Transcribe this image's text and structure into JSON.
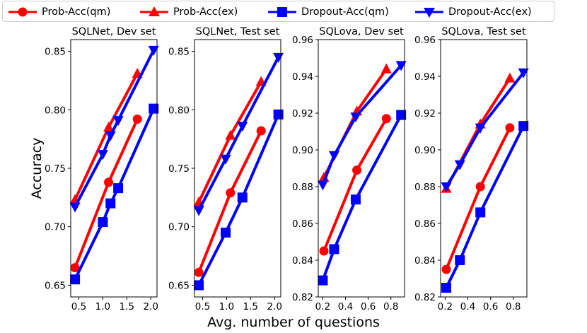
{
  "figure": {
    "shared_xlabel": "Avg. number of questions",
    "shared_ylabel": "Accuracy"
  },
  "legend": [
    {
      "label": "Prob-Acc(qm)",
      "color": "#ff0000",
      "marker": "circle"
    },
    {
      "label": "Prob-Acc(ex)",
      "color": "#ff0000",
      "marker": "triangle-up"
    },
    {
      "label": "Dropout-Acc(qm)",
      "color": "#0000ff",
      "marker": "square"
    },
    {
      "label": "Dropout-Acc(ex)",
      "color": "#0000ff",
      "marker": "triangle-down"
    }
  ],
  "chart_data": [
    {
      "type": "line",
      "title": "SQLNet, Dev set",
      "xlabel": "Avg. number of questions",
      "ylabel": "Accuracy",
      "xlim": [
        0.33,
        2.13
      ],
      "ylim": [
        0.64,
        0.86
      ],
      "xticks": [
        0.5,
        1.0,
        1.5,
        2.0
      ],
      "xtick_labels": [
        "0.5",
        "1.0",
        "1.5",
        "2.0"
      ],
      "yticks": [
        0.65,
        0.7,
        0.75,
        0.8,
        0.85
      ],
      "ytick_labels": [
        "0.65",
        "0.70",
        "0.75",
        "0.80",
        "0.85"
      ],
      "series": [
        {
          "name": "Prob-Acc(qm)",
          "color": "#ff0000",
          "marker": "circle",
          "x": [
            0.42,
            1.12,
            1.72
          ],
          "y": [
            0.665,
            0.738,
            0.792
          ]
        },
        {
          "name": "Prob-Acc(ex)",
          "color": "#ff0000",
          "marker": "triangle-up",
          "x": [
            0.42,
            1.12,
            1.72
          ],
          "y": [
            0.723,
            0.785,
            0.831
          ]
        },
        {
          "name": "Dropout-Acc(qm)",
          "color": "#0000ff",
          "marker": "square",
          "x": [
            0.42,
            1.0,
            1.16,
            1.32,
            2.06
          ],
          "y": [
            0.655,
            0.704,
            0.72,
            0.733,
            0.801
          ]
        },
        {
          "name": "Dropout-Acc(ex)",
          "color": "#0000ff",
          "marker": "triangle-down",
          "x": [
            0.42,
            1.0,
            1.16,
            1.32,
            2.06
          ],
          "y": [
            0.717,
            0.762,
            0.778,
            0.791,
            0.851
          ]
        }
      ]
    },
    {
      "type": "line",
      "title": "SQLNet, Test set",
      "xlabel": "Avg. number of questions",
      "ylabel": "Accuracy",
      "xlim": [
        0.33,
        2.13
      ],
      "ylim": [
        0.64,
        0.86
      ],
      "xticks": [
        0.5,
        1.0,
        1.5,
        2.0
      ],
      "xtick_labels": [
        "0.5",
        "1.0",
        "1.5",
        "2.0"
      ],
      "yticks": [
        0.65,
        0.7,
        0.75,
        0.8,
        0.85
      ],
      "ytick_labels": [
        "0.65",
        "0.70",
        "0.75",
        "0.80",
        "0.85"
      ],
      "series": [
        {
          "name": "Prob-Acc(qm)",
          "color": "#ff0000",
          "marker": "circle",
          "x": [
            0.42,
            1.08,
            1.72
          ],
          "y": [
            0.661,
            0.729,
            0.782
          ]
        },
        {
          "name": "Prob-Acc(ex)",
          "color": "#ff0000",
          "marker": "triangle-up",
          "x": [
            0.42,
            1.08,
            1.72
          ],
          "y": [
            0.721,
            0.778,
            0.824
          ]
        },
        {
          "name": "Dropout-Acc(qm)",
          "color": "#0000ff",
          "marker": "square",
          "x": [
            0.42,
            0.98,
            1.33,
            2.08
          ],
          "y": [
            0.65,
            0.695,
            0.725,
            0.796
          ]
        },
        {
          "name": "Dropout-Acc(ex)",
          "color": "#0000ff",
          "marker": "triangle-down",
          "x": [
            0.42,
            0.98,
            1.33,
            2.08
          ],
          "y": [
            0.714,
            0.758,
            0.786,
            0.845
          ]
        }
      ]
    },
    {
      "type": "line",
      "title": "SQLova, Dev set",
      "xlabel": "Avg. number of questions",
      "ylabel": "Accuracy",
      "xlim": [
        0.16,
        0.92
      ],
      "ylim": [
        0.82,
        0.96
      ],
      "xticks": [
        0.2,
        0.4,
        0.6,
        0.8
      ],
      "xtick_labels": [
        "0.2",
        "0.4",
        "0.6",
        "0.8"
      ],
      "yticks": [
        0.82,
        0.84,
        0.86,
        0.88,
        0.9,
        0.92,
        0.94,
        0.96
      ],
      "ytick_labels": [
        "0.82",
        "0.84",
        "0.86",
        "0.88",
        "0.90",
        "0.92",
        "0.94",
        "0.96"
      ],
      "series": [
        {
          "name": "Prob-Acc(qm)",
          "color": "#ff0000",
          "marker": "circle",
          "x": [
            0.21,
            0.5,
            0.76
          ],
          "y": [
            0.845,
            0.889,
            0.917
          ]
        },
        {
          "name": "Prob-Acc(ex)",
          "color": "#ff0000",
          "marker": "triangle-up",
          "x": [
            0.21,
            0.5,
            0.76
          ],
          "y": [
            0.885,
            0.921,
            0.944
          ]
        },
        {
          "name": "Dropout-Acc(qm)",
          "color": "#0000ff",
          "marker": "square",
          "x": [
            0.2,
            0.3,
            0.49,
            0.89
          ],
          "y": [
            0.829,
            0.846,
            0.873,
            0.919
          ]
        },
        {
          "name": "Dropout-Acc(ex)",
          "color": "#0000ff",
          "marker": "triangle-down",
          "x": [
            0.2,
            0.3,
            0.49,
            0.89
          ],
          "y": [
            0.881,
            0.897,
            0.918,
            0.946
          ]
        }
      ]
    },
    {
      "type": "line",
      "title": "SQLova, Test set",
      "xlabel": "Avg. number of questions",
      "ylabel": "Accuracy",
      "xlim": [
        0.16,
        0.92
      ],
      "ylim": [
        0.82,
        0.96
      ],
      "xticks": [
        0.2,
        0.4,
        0.6,
        0.8
      ],
      "xtick_labels": [
        "0.2",
        "0.4",
        "0.6",
        "0.8"
      ],
      "yticks": [
        0.82,
        0.84,
        0.86,
        0.88,
        0.9,
        0.92,
        0.94,
        0.96
      ],
      "ytick_labels": [
        "0.82",
        "0.84",
        "0.86",
        "0.88",
        "0.90",
        "0.92",
        "0.94",
        "0.96"
      ],
      "series": [
        {
          "name": "Prob-Acc(qm)",
          "color": "#ff0000",
          "marker": "circle",
          "x": [
            0.21,
            0.51,
            0.77
          ],
          "y": [
            0.835,
            0.88,
            0.912
          ]
        },
        {
          "name": "Prob-Acc(ex)",
          "color": "#ff0000",
          "marker": "triangle-up",
          "x": [
            0.21,
            0.51,
            0.77
          ],
          "y": [
            0.879,
            0.914,
            0.939
          ]
        },
        {
          "name": "Dropout-Acc(qm)",
          "color": "#0000ff",
          "marker": "square",
          "x": [
            0.21,
            0.33,
            0.51,
            0.89
          ],
          "y": [
            0.825,
            0.84,
            0.866,
            0.913
          ]
        },
        {
          "name": "Dropout-Acc(ex)",
          "color": "#0000ff",
          "marker": "triangle-down",
          "x": [
            0.21,
            0.33,
            0.51,
            0.89
          ],
          "y": [
            0.88,
            0.892,
            0.912,
            0.942
          ]
        }
      ]
    }
  ]
}
